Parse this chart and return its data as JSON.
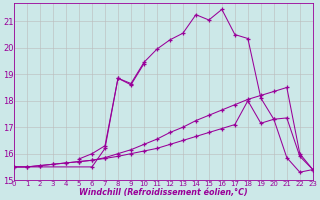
{
  "background_color": "#cce8e8",
  "line_color": "#990099",
  "grid_color": "#bbbbbb",
  "xlabel": "Windchill (Refroidissement éolien,°C)",
  "xlim": [
    0,
    23
  ],
  "ylim": [
    15,
    21.7
  ],
  "yticks": [
    15,
    16,
    17,
    18,
    19,
    20,
    21
  ],
  "xticks": [
    0,
    1,
    2,
    3,
    4,
    5,
    6,
    7,
    8,
    9,
    10,
    11,
    12,
    13,
    14,
    15,
    16,
    17,
    18,
    19,
    20,
    21,
    22,
    23
  ],
  "line1_x": [
    0,
    1,
    2,
    3,
    4,
    5,
    6,
    7,
    8,
    9,
    10,
    11,
    12,
    13,
    14,
    15,
    16,
    17,
    18,
    19,
    20,
    21,
    22,
    23
  ],
  "line1_y": [
    15.5,
    15.5,
    15.55,
    15.6,
    15.65,
    15.7,
    15.75,
    15.82,
    15.9,
    16.0,
    16.1,
    16.2,
    16.35,
    16.5,
    16.65,
    16.8,
    16.95,
    17.1,
    18.0,
    17.15,
    17.3,
    17.35,
    15.9,
    15.4
  ],
  "line2_x": [
    0,
    1,
    2,
    3,
    4,
    5,
    6,
    7,
    8,
    9,
    10,
    11,
    12,
    13,
    14,
    15,
    16,
    17,
    18,
    19,
    20,
    21,
    22,
    23
  ],
  "line2_y": [
    15.5,
    15.5,
    15.55,
    15.6,
    15.65,
    15.7,
    15.75,
    15.85,
    16.0,
    16.15,
    16.35,
    16.55,
    16.8,
    17.0,
    17.25,
    17.45,
    17.65,
    17.85,
    18.05,
    18.2,
    18.35,
    18.5,
    16.0,
    15.4
  ],
  "line3_x": [
    0,
    6,
    7,
    8,
    9,
    10,
    11,
    12,
    13,
    14,
    15,
    16,
    17,
    18,
    19,
    20,
    21,
    22,
    23
  ],
  "line3_y": [
    15.5,
    15.5,
    16.2,
    18.85,
    18.65,
    19.45,
    19.95,
    20.3,
    20.55,
    21.25,
    21.05,
    21.45,
    20.5,
    20.35,
    18.1,
    17.3,
    15.85,
    15.3,
    15.4
  ],
  "line4_x": [
    5,
    6,
    7,
    8,
    9,
    10
  ],
  "line4_y": [
    15.8,
    16.0,
    16.3,
    18.85,
    18.6,
    19.4
  ]
}
